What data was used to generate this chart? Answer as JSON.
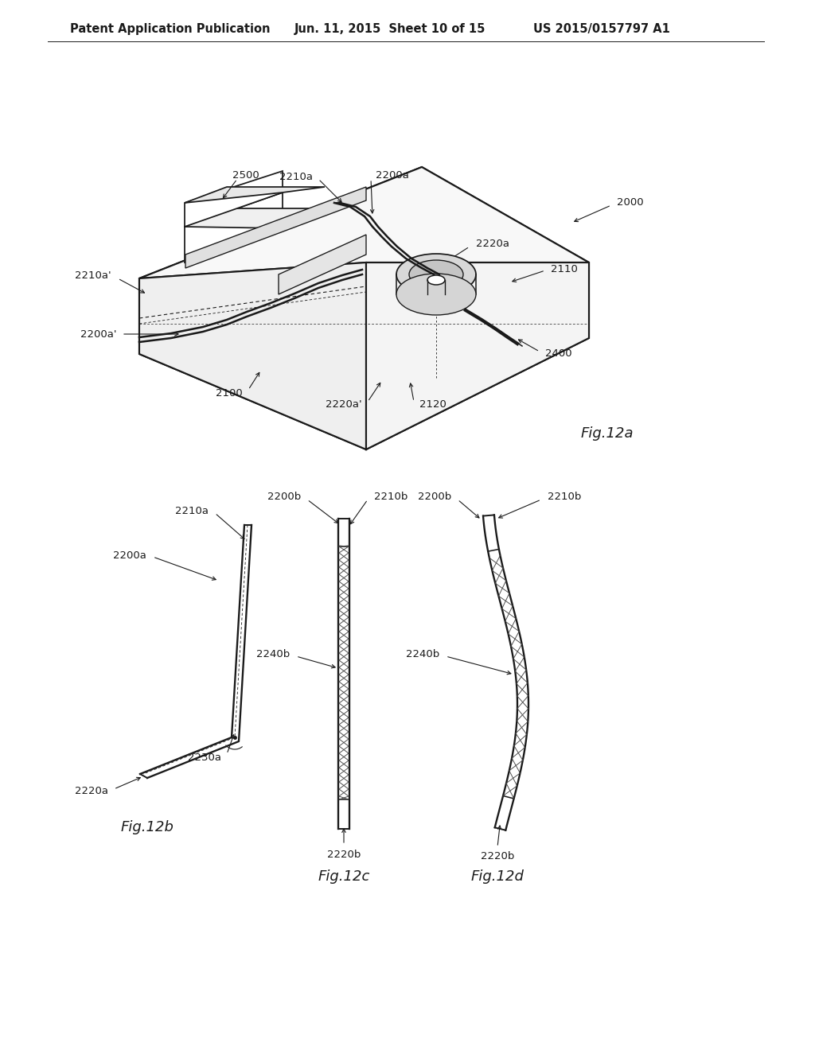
{
  "bg_color": "#ffffff",
  "header_text": "Patent Application Publication",
  "header_date": "Jun. 11, 2015  Sheet 10 of 15",
  "header_patent": "US 2015/0157797 A1",
  "fig12a_label": "Fig.12a",
  "fig12b_label": "Fig.12b",
  "fig12c_label": "Fig.12c",
  "fig12d_label": "Fig.12d",
  "line_color": "#1a1a1a",
  "line_width": 1.4,
  "font_size_header": 10.5,
  "font_size_label": 12,
  "font_size_ref": 9.5
}
